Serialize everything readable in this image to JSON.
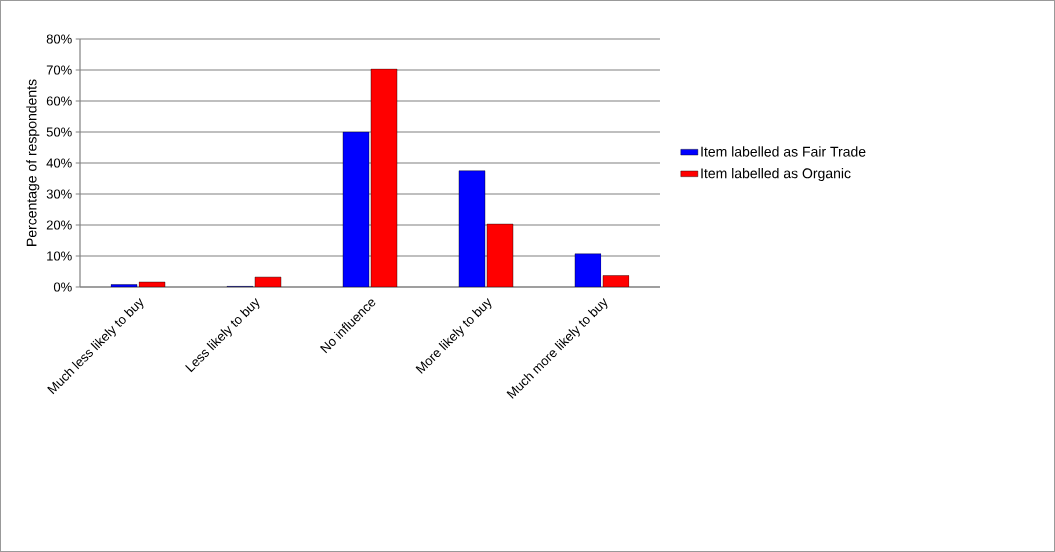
{
  "chart_data": {
    "type": "bar",
    "ylabel": "Percentage of respondents",
    "categories": [
      "Much less likely to buy",
      "Less likely to buy",
      "No influence",
      "More likely to buy",
      "Much more likely to buy"
    ],
    "series": [
      {
        "name": "Item labelled as Fair Trade",
        "color": "#0000ff",
        "values": [
          0.8,
          0.2,
          50,
          37.5,
          10.7
        ]
      },
      {
        "name": "Item labelled as Organic",
        "color": "#ff0000",
        "values": [
          1.6,
          3.2,
          70.3,
          20.3,
          3.7
        ]
      }
    ],
    "ylim": [
      0,
      80
    ],
    "yticks": [
      {
        "value": 0,
        "label": "0%"
      },
      {
        "value": 10,
        "label": "10%"
      },
      {
        "value": 20,
        "label": "20%"
      },
      {
        "value": 30,
        "label": "30%"
      },
      {
        "value": 40,
        "label": "40%"
      },
      {
        "value": 50,
        "label": "50%"
      },
      {
        "value": 60,
        "label": "60%"
      },
      {
        "value": 70,
        "label": "70%"
      },
      {
        "value": 80,
        "label": "80%"
      }
    ],
    "grid": "y",
    "legend": "right"
  }
}
